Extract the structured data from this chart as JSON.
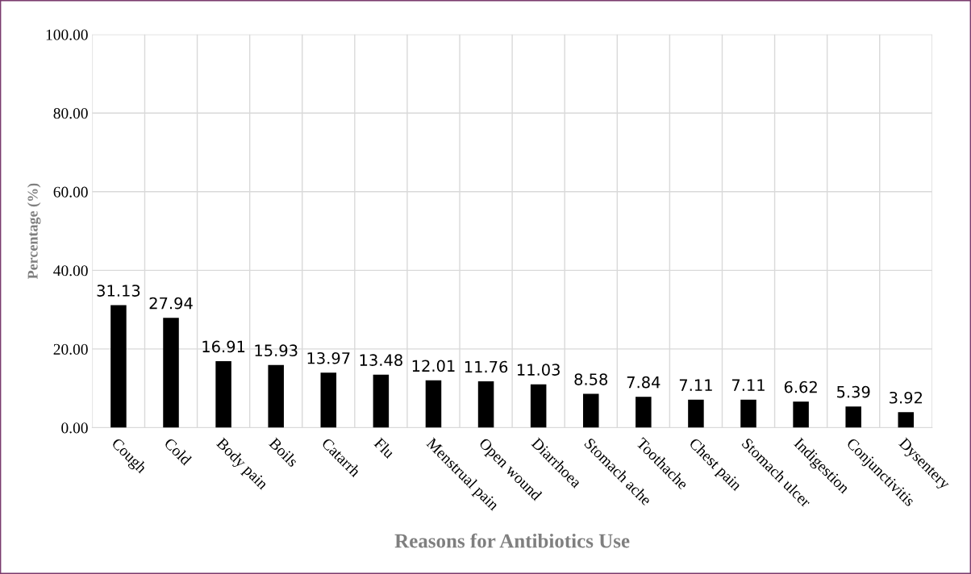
{
  "chart_data": {
    "type": "bar",
    "xlabel": "Reasons for Antibiotics Use",
    "ylabel": "Percentage (%)",
    "categories": [
      "Cough",
      "Cold",
      "Body pain",
      "Boils",
      "Catarrh",
      "Flu",
      "Menstrual pain",
      "Open wound",
      "Diarrhoea",
      "Stomach ache",
      "Toothache",
      "Chest pain",
      "Stomach ulcer",
      "Indigestion",
      "Conjunctivitis",
      "Dysentery"
    ],
    "values": [
      31.13,
      27.94,
      16.91,
      15.93,
      13.97,
      13.48,
      12.01,
      11.76,
      11.03,
      8.58,
      7.84,
      7.11,
      7.11,
      6.62,
      5.39,
      3.92
    ],
    "color": "#000000",
    "ylim": [
      0,
      100
    ],
    "yticks": [
      {
        "value": 0,
        "label": "0.00"
      },
      {
        "value": 20,
        "label": "20.00"
      },
      {
        "value": 40,
        "label": "40.00"
      },
      {
        "value": 60,
        "label": "60.00"
      },
      {
        "value": 80,
        "label": "80.00"
      },
      {
        "value": 100,
        "label": "100.00"
      }
    ],
    "grid": true,
    "data_labels": true
  }
}
